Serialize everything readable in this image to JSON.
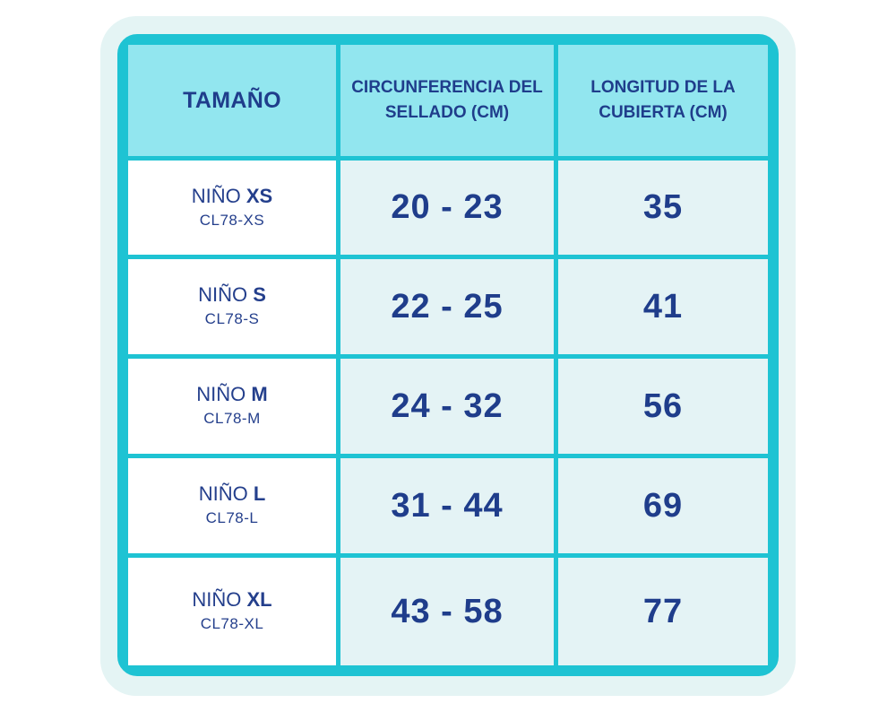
{
  "headers": {
    "size": "TAMAÑO",
    "seal_line1": "CIRCUNFERENCIA DEL",
    "seal_line2": "SELLADO (CM)",
    "cover_line1": "LONGITUD DE LA",
    "cover_line2": "CUBIERTA (CM)"
  },
  "rows": [
    {
      "prefix": "NIÑO",
      "size": "XS",
      "code": "CL78-XS",
      "seal": "20 - 23",
      "cover": "35"
    },
    {
      "prefix": "NIÑO",
      "size": "S",
      "code": "CL78-S",
      "seal": "22 - 25",
      "cover": "41"
    },
    {
      "prefix": "NIÑO",
      "size": "M",
      "code": "CL78-M",
      "seal": "24 - 32",
      "cover": "56"
    },
    {
      "prefix": "NIÑO",
      "size": "L",
      "code": "CL78-L",
      "seal": "31 - 44",
      "cover": "69"
    },
    {
      "prefix": "NIÑO",
      "size": "XL",
      "code": "CL78-XL",
      "seal": "43 - 58",
      "cover": "77"
    }
  ],
  "colors": {
    "border": "#1ec3d3",
    "header_bg": "#92e6ef",
    "data_bg": "#e4f3f5",
    "text": "#1f3d8b",
    "outer_bg": "#e4f4f4"
  }
}
